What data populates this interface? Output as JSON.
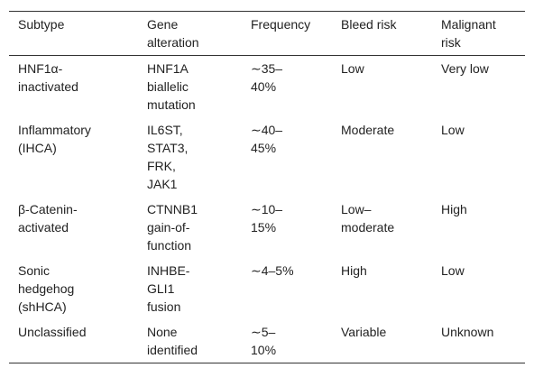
{
  "table": {
    "header": [
      [
        "Subtype"
      ],
      [
        "Gene",
        "alteration"
      ],
      [
        "Frequency"
      ],
      [
        "Bleed risk"
      ],
      [
        "Malignant",
        "risk"
      ]
    ],
    "rows": [
      [
        [
          "HNF1α-",
          "inactivated"
        ],
        [
          "HNF1A",
          "biallelic",
          "mutation"
        ],
        [
          "∼35–",
          "40%"
        ],
        [
          "Low"
        ],
        [
          "Very low"
        ]
      ],
      [
        [
          "Inflammatory",
          "(IHCA)"
        ],
        [
          "IL6ST,",
          "STAT3,",
          "FRK,",
          "JAK1"
        ],
        [
          "∼40–",
          "45%"
        ],
        [
          "Moderate"
        ],
        [
          "Low"
        ]
      ],
      [
        [
          "β-Catenin-",
          "activated"
        ],
        [
          "CTNNB1",
          "gain-of-",
          "function"
        ],
        [
          "∼10–",
          "15%"
        ],
        [
          "Low–",
          "moderate"
        ],
        [
          "High"
        ]
      ],
      [
        [
          "Sonic",
          "hedgehog",
          "(shHCA)"
        ],
        [
          "INHBE-",
          "GLI1",
          "fusion"
        ],
        [
          "∼4–5%"
        ],
        [
          "High"
        ],
        [
          "Low"
        ]
      ],
      [
        [
          "Unclassified"
        ],
        [
          "None",
          "identified"
        ],
        [
          "∼5–",
          "10%"
        ],
        [
          "Variable"
        ],
        [
          "Unknown"
        ]
      ]
    ]
  }
}
